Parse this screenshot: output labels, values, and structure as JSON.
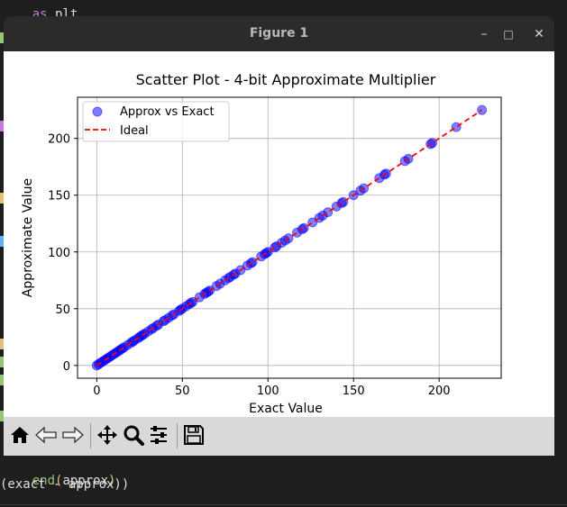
{
  "editor": {
    "top_fragment": "as plt",
    "bottom_line1_prefix": "end",
    "bottom_line1_arg": "approx",
    "bottom_line2": "(exact - approx))"
  },
  "window": {
    "title": "Figure 1",
    "minimize_glyph": "–",
    "maximize_glyph": "□",
    "close_glyph": "✕"
  },
  "toolbar": {
    "buttons": [
      "home-icon",
      "back-icon",
      "forward-icon",
      "pan-icon",
      "zoom-icon",
      "configure-subplots-icon",
      "save-icon"
    ]
  },
  "chart_data": {
    "type": "scatter",
    "title": "Scatter Plot - 4-bit Approximate Multiplier",
    "xlabel": "Exact Value",
    "ylabel": "Approximate Value",
    "xlim": [
      -11.25,
      236.25
    ],
    "ylim": [
      -11.25,
      236.25
    ],
    "xticks": [
      0,
      50,
      100,
      150,
      200
    ],
    "yticks": [
      0,
      50,
      100,
      150,
      200
    ],
    "grid": true,
    "legend_position": "top-left",
    "series": [
      {
        "name": "Approx vs Exact",
        "kind": "scatter",
        "color": "#0000ff",
        "x": [
          0,
          1,
          2,
          3,
          4,
          5,
          6,
          7,
          8,
          9,
          10,
          11,
          12,
          13,
          14,
          15,
          16,
          18,
          20,
          21,
          22,
          24,
          25,
          26,
          27,
          28,
          30,
          32,
          33,
          35,
          36,
          39,
          40,
          42,
          44,
          45,
          48,
          49,
          50,
          52,
          54,
          55,
          56,
          60,
          63,
          64,
          65,
          66,
          70,
          72,
          75,
          77,
          78,
          80,
          81,
          84,
          88,
          90,
          91,
          96,
          98,
          99,
          100,
          104,
          105,
          108,
          110,
          112,
          117,
          120,
          121,
          126,
          130,
          132,
          135,
          140,
          143,
          144,
          150,
          154,
          156,
          165,
          168,
          169,
          180,
          182,
          195,
          196,
          210,
          225
        ],
        "y": [
          0,
          1,
          2,
          3,
          4,
          5,
          6,
          7,
          8,
          9,
          10,
          11,
          12,
          13,
          14,
          15,
          16,
          18,
          20,
          21,
          22,
          24,
          25,
          26,
          27,
          28,
          30,
          32,
          33,
          35,
          36,
          39,
          40,
          42,
          44,
          45,
          48,
          49,
          50,
          52,
          54,
          55,
          56,
          60,
          63,
          64,
          65,
          66,
          70,
          72,
          75,
          77,
          78,
          80,
          81,
          84,
          88,
          90,
          91,
          96,
          98,
          99,
          100,
          104,
          105,
          108,
          110,
          112,
          117,
          120,
          121,
          126,
          130,
          132,
          135,
          140,
          143,
          144,
          150,
          154,
          156,
          165,
          168,
          169,
          180,
          182,
          195,
          196,
          210,
          225
        ]
      },
      {
        "name": "Ideal",
        "kind": "line",
        "color": "#ff0000",
        "style": "dashed",
        "x": [
          0,
          225
        ],
        "y": [
          0,
          225
        ]
      }
    ]
  }
}
